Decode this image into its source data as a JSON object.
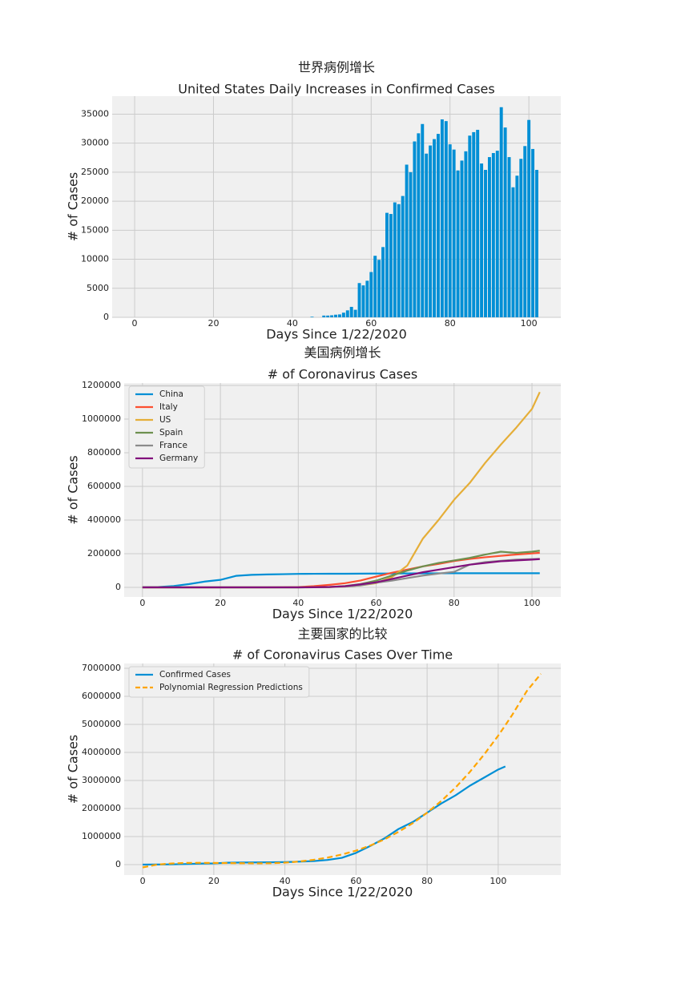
{
  "chart_data": [
    {
      "type": "bar",
      "title": "世界病例增长",
      "subtitle": "United States Daily Increases in Confirmed Cases",
      "xlabel": "Days Since 1/22/2020",
      "ylabel": "# of Cases",
      "color": "#008fd5",
      "grid": true,
      "xlim": [
        -5.7,
        108.1
      ],
      "ylim": [
        0,
        38100
      ],
      "xticks": [
        0,
        20,
        40,
        60,
        80,
        100
      ],
      "yticks": [
        0,
        5000,
        10000,
        15000,
        20000,
        25000,
        30000,
        35000
      ],
      "x": [
        0,
        1,
        2,
        3,
        4,
        5,
        6,
        7,
        8,
        9,
        10,
        11,
        12,
        13,
        14,
        15,
        16,
        17,
        18,
        19,
        20,
        21,
        22,
        23,
        24,
        25,
        26,
        27,
        28,
        29,
        30,
        31,
        32,
        33,
        34,
        35,
        36,
        37,
        38,
        39,
        40,
        41,
        42,
        43,
        44,
        45,
        46,
        47,
        48,
        49,
        50,
        51,
        52,
        53,
        54,
        55,
        56,
        57,
        58,
        59,
        60,
        61,
        62,
        63,
        64,
        65,
        66,
        67,
        68,
        69,
        70,
        71,
        72,
        73,
        74,
        75,
        76,
        77,
        78,
        79,
        80,
        81,
        82,
        83,
        84,
        85,
        86,
        87,
        88,
        89,
        90,
        91,
        92,
        93,
        94,
        95,
        96,
        97,
        98,
        99,
        100,
        101,
        102
      ],
      "values": [
        0,
        0,
        0,
        0,
        0,
        0,
        0,
        0,
        0,
        0,
        0,
        0,
        0,
        0,
        0,
        0,
        0,
        0,
        0,
        0,
        0,
        0,
        0,
        0,
        0,
        0,
        0,
        0,
        0,
        0,
        0,
        0,
        0,
        0,
        0,
        0,
        0,
        0,
        0,
        0,
        0,
        0,
        0,
        0,
        0,
        100,
        0,
        0,
        300,
        300,
        350,
        450,
        500,
        800,
        1200,
        1800,
        1300,
        5900,
        5500,
        6300,
        7800,
        10600,
        9900,
        12100,
        18000,
        17800,
        19800,
        19500,
        20900,
        26300,
        25000,
        30300,
        31700,
        33300,
        28200,
        29600,
        30700,
        31600,
        34100,
        33800,
        29800,
        28900,
        25300,
        27000,
        28600,
        31300,
        31900,
        32300,
        26500,
        25400,
        27600,
        28300,
        28700,
        36200,
        32700,
        27600,
        22400,
        24400,
        27300,
        29500,
        34000,
        29000,
        25400
      ]
    },
    {
      "type": "line",
      "title": "美国病例增长",
      "subtitle": "# of Coronavirus Cases",
      "xlabel": "Days Since 1/22/2020",
      "ylabel": "# of Cases",
      "grid": true,
      "legend": "upper left",
      "xlim": [
        -4.7,
        107.4
      ],
      "ylim": [
        -57000,
        1214000
      ],
      "xticks": [
        0,
        20,
        40,
        60,
        80,
        100
      ],
      "yticks": [
        0,
        200000,
        400000,
        600000,
        800000,
        1000000,
        1200000
      ],
      "x": [
        0,
        4,
        8,
        12,
        16,
        20,
        24,
        28,
        32,
        36,
        40,
        44,
        48,
        52,
        56,
        60,
        64,
        68,
        72,
        76,
        80,
        84,
        88,
        92,
        96,
        100,
        102
      ],
      "series": [
        {
          "name": "China",
          "color": "#008fd5",
          "values": [
            548,
            2070,
            8100,
            19700,
            34600,
            44700,
            68400,
            74600,
            77000,
            78500,
            80200,
            80800,
            81000,
            81200,
            81500,
            82300,
            82600,
            82900,
            83300,
            83800,
            83900,
            83900,
            84000,
            84000,
            84100,
            84100,
            84100
          ]
        },
        {
          "name": "Italy",
          "color": "#fc4f30",
          "values": [
            0,
            0,
            0,
            0,
            0,
            3,
            3,
            3,
            3,
            650,
            2036,
            7375,
            15113,
            24747,
            41035,
            63927,
            86498,
            105792,
            124632,
            139422,
            156363,
            168941,
            178972,
            187327,
            195351,
            201505,
            205463
          ]
        },
        {
          "name": "US",
          "color": "#e5ae38",
          "values": [
            1,
            5,
            6,
            12,
            12,
            13,
            15,
            15,
            15,
            60,
            100,
            500,
            1600,
            5000,
            12000,
            25000,
            60000,
            130000,
            290000,
            400000,
            520000,
            620000,
            740000,
            848000,
            950000,
            1060000,
            1160000
          ]
        },
        {
          "name": "Spain",
          "color": "#6d904f",
          "values": [
            0,
            0,
            0,
            0,
            0,
            0,
            0,
            0,
            2,
            12,
            150,
            500,
            2000,
            8000,
            20000,
            40000,
            70000,
            100000,
            125000,
            145000,
            160000,
            175000,
            195000,
            212000,
            205000,
            212000,
            218000
          ]
        },
        {
          "name": "France",
          "color": "#8b8b8b",
          "values": [
            0,
            3,
            6,
            6,
            11,
            11,
            12,
            12,
            12,
            38,
            100,
            400,
            1500,
            4500,
            12000,
            28000,
            40000,
            55000,
            70000,
            82000,
            92000,
            135000,
            150000,
            158000,
            165000,
            168000,
            170000
          ]
        },
        {
          "name": "Germany",
          "color": "#810f7c",
          "values": [
            0,
            0,
            4,
            12,
            14,
            16,
            16,
            16,
            16,
            26,
            150,
            800,
            2500,
            7000,
            18000,
            30000,
            50000,
            70000,
            90000,
            105000,
            120000,
            135000,
            145000,
            155000,
            160000,
            165000,
            168000
          ]
        }
      ]
    },
    {
      "type": "line",
      "title": "主要国家的比较",
      "subtitle": "# of Coronavirus Cases Over Time",
      "xlabel": "Days Since 1/22/2020",
      "ylabel": "# of Cases",
      "grid": true,
      "legend": "upper left",
      "xlim": [
        -5.2,
        117.6
      ],
      "ylim": [
        -371000,
        7170000
      ],
      "xticks": [
        0,
        20,
        40,
        60,
        80,
        100
      ],
      "yticks": [
        0,
        1000000,
        2000000,
        3000000,
        4000000,
        5000000,
        6000000,
        7000000
      ],
      "x": [
        0,
        4,
        8,
        12,
        16,
        20,
        24,
        28,
        32,
        36,
        40,
        44,
        48,
        52,
        56,
        60,
        64,
        68,
        72,
        76,
        80,
        84,
        88,
        92,
        96,
        100,
        102,
        104,
        108,
        112
      ],
      "series": [
        {
          "name": "Confirmed Cases",
          "color": "#008fd5",
          "values": [
            555,
            2900,
            9900,
            20600,
            37000,
            45000,
            69000,
            75600,
            78700,
            83000,
            90300,
            105800,
            126000,
            167000,
            242000,
            417000,
            663000,
            935000,
            1273000,
            1520000,
            1850000,
            2180000,
            2470000,
            2810000,
            3100000,
            3390000,
            3500000,
            null,
            null,
            null
          ]
        },
        {
          "name": "Polynomial Regression Predictions",
          "color": "#ffa500",
          "dashed": true,
          "values": [
            -100000,
            0,
            40000,
            60000,
            65000,
            60000,
            55000,
            50000,
            45000,
            50000,
            70000,
            110000,
            170000,
            250000,
            360000,
            500000,
            680000,
            900000,
            1170000,
            1480000,
            1850000,
            2270000,
            2750000,
            3300000,
            3920000,
            4600000,
            4970000,
            5350000,
            6180000,
            6800000
          ]
        }
      ]
    }
  ]
}
